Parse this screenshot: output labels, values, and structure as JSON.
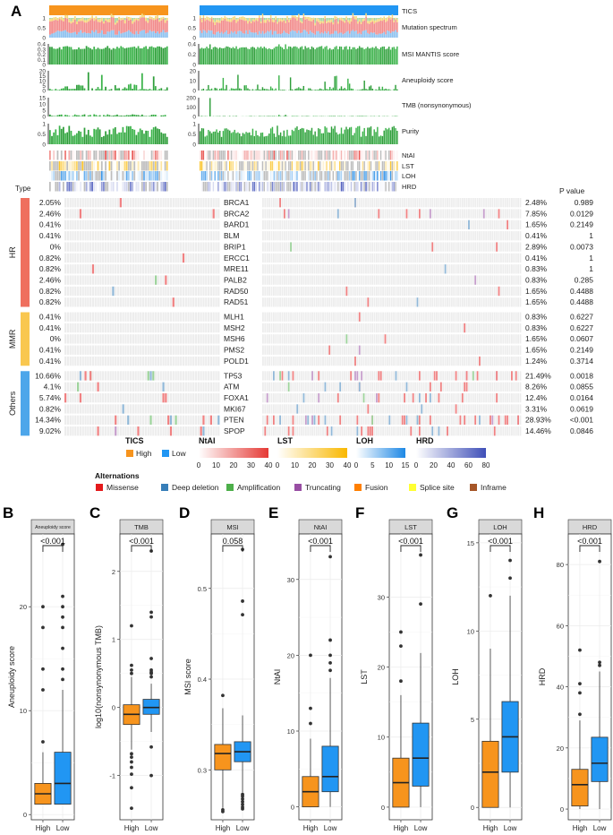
{
  "panel_labels": [
    "A",
    "B",
    "C",
    "D",
    "E",
    "F",
    "G",
    "H"
  ],
  "colors": {
    "high": "#F7941D",
    "low": "#2196F3",
    "green": "#2E9E3A",
    "green_dark": "#1E7A2A",
    "hr": "#EF6F5E",
    "mmr": "#F9C74F",
    "others": "#4DA6EA",
    "ntai": "#E53935",
    "lst": "#F9B800",
    "loh": "#1E88E5",
    "hrd": "#3F4FB8",
    "na": "#BDBDBD",
    "cell": "#EDEDED"
  },
  "oncoprint": {
    "track_labels": [
      "TICS",
      "Mutation spectrum",
      "MSI MANTIS score",
      "Aneuploidy score",
      "TMB (nonsynonymous)",
      "Purity"
    ],
    "heat_labels": [
      "NtAI",
      "LST",
      "LOH",
      "HRD"
    ],
    "type_header": "Type",
    "pvalue_header": "P value",
    "left_axes": {
      "spectrum": [
        "1",
        "0.5",
        "0"
      ],
      "msi": [
        "0.4",
        "0.3",
        "0.2",
        "0.1",
        "0"
      ],
      "aneuploidy": [
        "20",
        "15",
        "10",
        "5",
        "0"
      ],
      "tmb": [
        "15",
        "10",
        "5",
        "0"
      ],
      "purity": [
        "1",
        "0.5",
        "0"
      ]
    },
    "right_axes": {
      "spectrum": [
        "1",
        "0.5",
        "0"
      ],
      "msi": [
        "0.4",
        "0.2",
        "0"
      ],
      "aneuploidy": [
        "20",
        "10",
        "0"
      ],
      "tmb": [
        "200",
        "100",
        "0"
      ],
      "purity": [
        "1",
        "0.5",
        "0"
      ]
    },
    "groups": [
      {
        "name": "HR",
        "color_key": "hr",
        "genes": [
          {
            "gene": "BRCA1",
            "high_pct": "2.05%",
            "low_pct": "2.48%",
            "p": "0.989"
          },
          {
            "gene": "BRCA2",
            "high_pct": "2.46%",
            "low_pct": "7.85%",
            "p": "0.0129"
          },
          {
            "gene": "BARD1",
            "high_pct": "0.41%",
            "low_pct": "1.65%",
            "p": "0.2149"
          },
          {
            "gene": "BLM",
            "high_pct": "0.41%",
            "low_pct": "0.41%",
            "p": "1"
          },
          {
            "gene": "BRIP1",
            "high_pct": "0%",
            "low_pct": "2.89%",
            "p": "0.0073"
          },
          {
            "gene": "ERCC1",
            "high_pct": "0.82%",
            "low_pct": "0.41%",
            "p": "1"
          },
          {
            "gene": "MRE11",
            "high_pct": "0.82%",
            "low_pct": "0.83%",
            "p": "1"
          },
          {
            "gene": "PALB2",
            "high_pct": "2.46%",
            "low_pct": "0.83%",
            "p": "0.285"
          },
          {
            "gene": "RAD50",
            "high_pct": "0.82%",
            "low_pct": "1.65%",
            "p": "0.4488"
          },
          {
            "gene": "RAD51",
            "high_pct": "0.82%",
            "low_pct": "1.65%",
            "p": "0.4488"
          }
        ]
      },
      {
        "name": "MMR",
        "color_key": "mmr",
        "genes": [
          {
            "gene": "MLH1",
            "high_pct": "0.41%",
            "low_pct": "0.83%",
            "p": "0.6227"
          },
          {
            "gene": "MSH2",
            "high_pct": "0.41%",
            "low_pct": "0.83%",
            "p": "0.6227"
          },
          {
            "gene": "MSH6",
            "high_pct": "0%",
            "low_pct": "1.65%",
            "p": "0.0607"
          },
          {
            "gene": "PMS2",
            "high_pct": "0.41%",
            "low_pct": "1.65%",
            "p": "0.2149"
          },
          {
            "gene": "POLD1",
            "high_pct": "0.41%",
            "low_pct": "1.24%",
            "p": "0.3714"
          }
        ]
      },
      {
        "name": "Others",
        "color_key": "others",
        "genes": [
          {
            "gene": "TP53",
            "high_pct": "10.66%",
            "low_pct": "21.49%",
            "p": "0.0018"
          },
          {
            "gene": "ATM",
            "high_pct": "4.1%",
            "low_pct": "8.26%",
            "p": "0.0855"
          },
          {
            "gene": "FOXA1",
            "high_pct": "5.74%",
            "low_pct": "12.4%",
            "p": "0.0164"
          },
          {
            "gene": "MKI67",
            "high_pct": "0.82%",
            "low_pct": "3.31%",
            "p": "0.0619"
          },
          {
            "gene": "PTEN",
            "high_pct": "14.34%",
            "low_pct": "28.93%",
            "p": "<0.001"
          },
          {
            "gene": "SPOP",
            "high_pct": "9.02%",
            "low_pct": "14.46%",
            "p": "0.0846"
          }
        ]
      }
    ]
  },
  "legend": {
    "tics": {
      "title": "TICS",
      "items": [
        {
          "label": "High",
          "color": "#F7941D"
        },
        {
          "label": "Low",
          "color": "#2196F3"
        }
      ]
    },
    "gradients": [
      {
        "title": "NtAI",
        "ticks": [
          "0",
          "10",
          "20",
          "30",
          "40"
        ],
        "from": "#FFFFFF",
        "to": "#E53935"
      },
      {
        "title": "LST",
        "ticks": [
          "0",
          "10",
          "20",
          "30",
          "40"
        ],
        "from": "#FFFFFF",
        "to": "#F9B800"
      },
      {
        "title": "LOH",
        "ticks": [
          "0",
          "5",
          "10",
          "15"
        ],
        "from": "#FFFFFF",
        "to": "#1E88E5"
      },
      {
        "title": "HRD",
        "ticks": [
          "0",
          "20",
          "40",
          "60",
          "80"
        ],
        "from": "#FFFFFF",
        "to": "#3F4FB8"
      }
    ],
    "alterations_title": "Alternations",
    "alterations": [
      {
        "label": "Missense",
        "color": "#E41A1C"
      },
      {
        "label": "Deep deletion",
        "color": "#377EB8"
      },
      {
        "label": "Amplification",
        "color": "#4DAF4A"
      },
      {
        "label": "Truncating",
        "color": "#984EA3"
      },
      {
        "label": "Fusion",
        "color": "#FF7F00"
      },
      {
        "label": "Splice site",
        "color": "#FFFF33"
      },
      {
        "label": "Inframe",
        "color": "#A65628"
      }
    ]
  },
  "chart_data": [
    {
      "type": "box",
      "panel": "B",
      "title": "Aneuploidy score",
      "ylabel": "Aneuploidy score",
      "xlabel": "",
      "categories": [
        "High",
        "Low"
      ],
      "pvalue": "<0.001",
      "ylim": [
        -0.5,
        27
      ],
      "yticks": [
        0,
        10,
        20
      ],
      "boxes": [
        {
          "q1": 1,
          "median": 2,
          "q3": 3,
          "whisker_low": 1,
          "whisker_high": 6,
          "outliers": [
            7,
            12,
            14,
            18,
            20
          ]
        },
        {
          "q1": 1,
          "median": 3,
          "q3": 6,
          "whisker_low": 1,
          "whisker_high": 12,
          "outliers": [
            13,
            14,
            16,
            18,
            19,
            20,
            21,
            26
          ]
        }
      ]
    },
    {
      "type": "box",
      "panel": "C",
      "title": "TMB",
      "ylabel": "log10(nonsynonymous TMB)",
      "xlabel": "",
      "categories": [
        "High",
        "Low"
      ],
      "pvalue": "<0.001",
      "ylim": [
        -1.65,
        2.55
      ],
      "yticks": [
        -1,
        0,
        1,
        2
      ],
      "boxes": [
        {
          "q1": -0.25,
          "median": -0.1,
          "q3": 0.04,
          "whisker_low": -0.62,
          "whisker_high": 0.45,
          "outliers": [
            -1.48,
            -1.18,
            -0.98,
            -0.88,
            -0.8,
            -0.73,
            -0.68,
            0.5,
            0.55,
            0.62,
            1.2
          ]
        },
        {
          "q1": -0.1,
          "median": 0,
          "q3": 0.12,
          "whisker_low": -0.36,
          "whisker_high": 0.35,
          "outliers": [
            -1.0,
            -0.58,
            0.45,
            0.5,
            0.52,
            0.55,
            0.72,
            1.33,
            1.4,
            2.3
          ]
        }
      ]
    },
    {
      "type": "box",
      "panel": "D",
      "title": "MSI",
      "ylabel": "MSI score",
      "xlabel": "",
      "categories": [
        "High",
        "Low"
      ],
      "pvalue": "0.058",
      "ylim": [
        0.245,
        0.56
      ],
      "yticks": [
        0.3,
        0.4,
        0.5
      ],
      "boxes": [
        {
          "q1": 0.3,
          "median": 0.318,
          "q3": 0.328,
          "whisker_low": 0.258,
          "whisker_high": 0.368,
          "outliers": [
            0.254,
            0.256,
            0.382
          ]
        },
        {
          "q1": 0.309,
          "median": 0.32,
          "q3": 0.331,
          "whisker_low": 0.275,
          "whisker_high": 0.36,
          "outliers": [
            0.257,
            0.259,
            0.262,
            0.265,
            0.268,
            0.271,
            0.273,
            0.471,
            0.486,
            0.543
          ]
        }
      ]
    },
    {
      "type": "box",
      "panel": "E",
      "title": "NtAI",
      "ylabel": "NtAI",
      "xlabel": "",
      "categories": [
        "High",
        "Low"
      ],
      "pvalue": "<0.001",
      "ylim": [
        -1.7,
        36
      ],
      "yticks": [
        0,
        10,
        20,
        30
      ],
      "boxes": [
        {
          "q1": 0,
          "median": 2,
          "q3": 4,
          "whisker_low": 0,
          "whisker_high": 9,
          "outliers": [
            11,
            13,
            20
          ]
        },
        {
          "q1": 2,
          "median": 4,
          "q3": 8,
          "whisker_low": 0,
          "whisker_high": 17,
          "outliers": [
            18,
            19,
            20,
            22,
            33
          ]
        }
      ]
    },
    {
      "type": "box",
      "panel": "F",
      "title": "LST",
      "ylabel": "LST",
      "xlabel": "",
      "categories": [
        "High",
        "Low"
      ],
      "pvalue": "<0.001",
      "ylim": [
        -1.8,
        39
      ],
      "yticks": [
        0,
        10,
        20,
        30
      ],
      "boxes": [
        {
          "q1": 0,
          "median": 3.5,
          "q3": 7,
          "whisker_low": 0,
          "whisker_high": 16,
          "outliers": [
            18,
            23,
            25
          ]
        },
        {
          "q1": 3,
          "median": 7,
          "q3": 12,
          "whisker_low": 0,
          "whisker_high": 22,
          "outliers": [
            29,
            36
          ]
        }
      ]
    },
    {
      "type": "box",
      "panel": "G",
      "title": "LOH",
      "ylabel": "LOH",
      "xlabel": "",
      "categories": [
        "High",
        "Low"
      ],
      "pvalue": "<0.001",
      "ylim": [
        -0.7,
        15.5
      ],
      "yticks": [
        0,
        5,
        10,
        15
      ],
      "boxes": [
        {
          "q1": 0,
          "median": 2,
          "q3": 3.75,
          "whisker_low": 0,
          "whisker_high": 9,
          "outliers": [
            12
          ]
        },
        {
          "q1": 2,
          "median": 4,
          "q3": 6,
          "whisker_low": 0,
          "whisker_high": 12,
          "outliers": [
            13,
            14
          ]
        }
      ]
    },
    {
      "type": "box",
      "panel": "H",
      "title": "HRD",
      "ylabel": "HRD",
      "xlabel": "",
      "categories": [
        "High",
        "Low"
      ],
      "pvalue": "<0.001",
      "ylim": [
        -3.5,
        90
      ],
      "yticks": [
        0,
        20,
        40,
        60,
        80
      ],
      "boxes": [
        {
          "q1": 1,
          "median": 8,
          "q3": 13,
          "whisker_low": 0,
          "whisker_high": 29,
          "outliers": [
            31,
            38,
            41,
            52
          ]
        },
        {
          "q1": 9,
          "median": 15,
          "q3": 23.5,
          "whisker_low": 0,
          "whisker_high": 45,
          "outliers": [
            47,
            48,
            81
          ]
        }
      ]
    }
  ]
}
